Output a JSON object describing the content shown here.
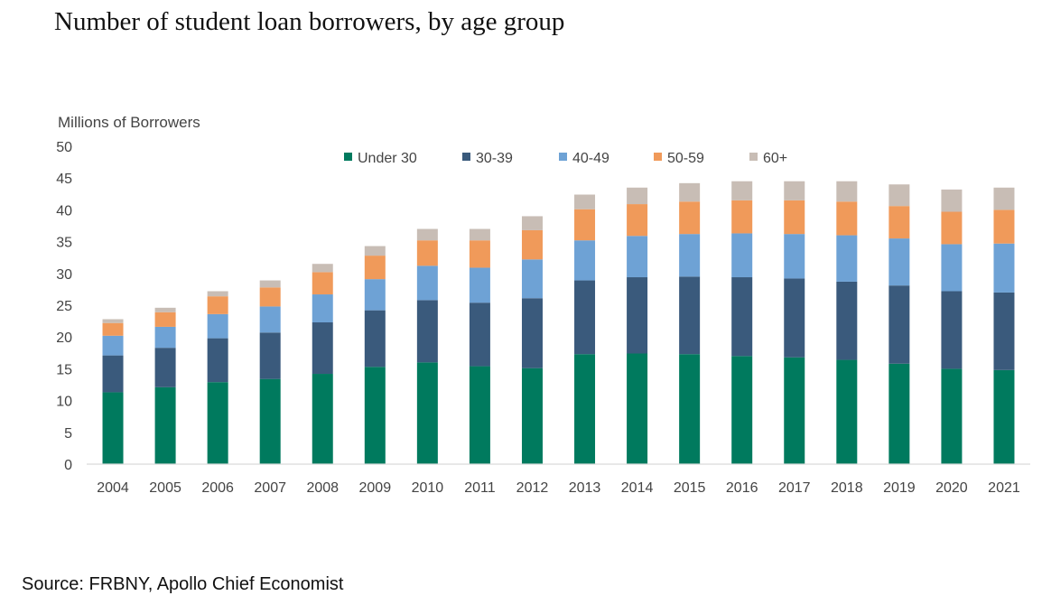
{
  "page": {
    "title": "Number of  student loan borrowers, by age group",
    "source": "Source: FRBNY, Apollo Chief Economist"
  },
  "chart_data": {
    "type": "bar",
    "stacked": true,
    "ylabel": "Millions of Borrowers",
    "xlabel": "",
    "ylim": [
      0,
      50
    ],
    "yticks": [
      0,
      5,
      10,
      15,
      20,
      25,
      30,
      35,
      40,
      45,
      50
    ],
    "grid": false,
    "legend_position": "top",
    "categories": [
      "2004",
      "2005",
      "2006",
      "2007",
      "2008",
      "2009",
      "2010",
      "2011",
      "2012",
      "2013",
      "2014",
      "2015",
      "2016",
      "2017",
      "2018",
      "2019",
      "2020",
      "2021"
    ],
    "series": [
      {
        "name": "Under 30",
        "color": "#007a5e",
        "values": [
          11.3,
          12.1,
          12.9,
          13.4,
          14.2,
          15.3,
          16.0,
          15.4,
          15.1,
          17.3,
          17.4,
          17.3,
          17.0,
          16.8,
          16.4,
          15.8,
          15.0,
          14.8
        ]
      },
      {
        "name": "30-39",
        "color": "#3a5a7c",
        "values": [
          5.8,
          6.2,
          6.9,
          7.3,
          8.1,
          8.9,
          9.8,
          10.0,
          11.0,
          11.6,
          12.0,
          12.2,
          12.4,
          12.4,
          12.3,
          12.3,
          12.2,
          12.2
        ]
      },
      {
        "name": "40-49",
        "color": "#6ea2d5",
        "values": [
          3.1,
          3.3,
          3.8,
          4.1,
          4.4,
          4.9,
          5.4,
          5.5,
          6.1,
          6.3,
          6.5,
          6.7,
          6.9,
          7.0,
          7.3,
          7.4,
          7.4,
          7.7
        ]
      },
      {
        "name": "50-59",
        "color": "#f09a5a",
        "values": [
          2.0,
          2.3,
          2.8,
          3.0,
          3.5,
          3.7,
          4.0,
          4.3,
          4.6,
          4.9,
          5.0,
          5.1,
          5.2,
          5.3,
          5.3,
          5.1,
          5.1,
          5.3
        ]
      },
      {
        "name": "60+",
        "color": "#c8bdb5",
        "values": [
          0.6,
          0.7,
          0.8,
          1.1,
          1.3,
          1.5,
          1.8,
          1.8,
          2.2,
          2.3,
          2.6,
          2.9,
          3.0,
          3.0,
          3.2,
          3.4,
          3.5,
          3.5
        ]
      }
    ]
  }
}
